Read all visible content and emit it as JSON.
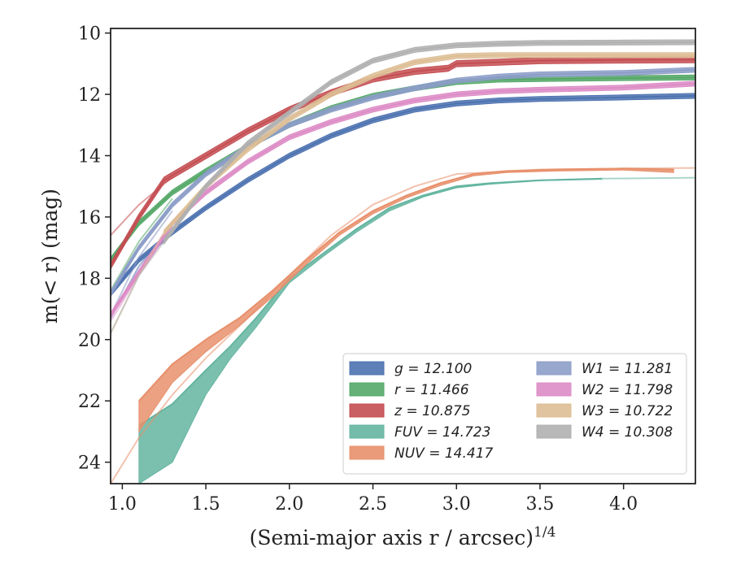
{
  "chart_data": {
    "type": "line",
    "title": "",
    "xlabel": "(Semi-major axis r / arcsec)",
    "xlabel_sup": "1/4",
    "ylabel": "m(< r) (mag)",
    "xlim": [
      0.93,
      4.43
    ],
    "ylim": [
      24.7,
      9.85
    ],
    "y_inverted": true,
    "xticks": [
      1.0,
      1.5,
      2.0,
      2.5,
      3.0,
      3.5,
      4.0
    ],
    "xtick_labels": [
      "1.0",
      "1.5",
      "2.0",
      "2.5",
      "3.0",
      "3.5",
      "4.0"
    ],
    "yticks": [
      10,
      12,
      14,
      16,
      18,
      20,
      22,
      24
    ],
    "ytick_labels": [
      "10",
      "12",
      "14",
      "16",
      "18",
      "20",
      "22",
      "24"
    ],
    "grid": false,
    "legend_position": "lower-right",
    "legend_columns": 2,
    "series": [
      {
        "name": "g",
        "label": "g = 12.100",
        "color": "#4c72b0",
        "band": 0.08,
        "x": [
          0.93,
          1.1,
          1.3,
          1.5,
          1.75,
          2.0,
          2.25,
          2.5,
          2.75,
          3.0,
          3.25,
          3.5,
          4.0,
          4.43
        ],
        "y": [
          18.5,
          17.4,
          16.5,
          15.7,
          14.8,
          14.0,
          13.35,
          12.85,
          12.5,
          12.3,
          12.2,
          12.15,
          12.1,
          12.05
        ],
        "ext_x": [
          0.93,
          1.1,
          1.3
        ],
        "ext_y": [
          19.3,
          17.6,
          16.3
        ]
      },
      {
        "name": "r",
        "label": "r = 11.466",
        "color": "#55a868",
        "band": 0.08,
        "x": [
          0.93,
          1.1,
          1.3,
          1.5,
          1.75,
          2.0,
          2.25,
          2.5,
          2.75,
          3.0,
          3.25,
          3.5,
          4.0,
          4.43
        ],
        "y": [
          17.4,
          16.2,
          15.2,
          14.5,
          13.7,
          13.0,
          12.45,
          12.05,
          11.8,
          11.6,
          11.52,
          11.5,
          11.47,
          11.45
        ],
        "ext_x": [
          0.93,
          1.1,
          1.3
        ],
        "ext_y": [
          18.4,
          16.8,
          15.4
        ]
      },
      {
        "name": "z",
        "label": "z = 10.875",
        "color": "#c44e52",
        "band": 0.1,
        "x": [
          0.93,
          1.1,
          1.25,
          1.5,
          1.75,
          2.0,
          2.25,
          2.5,
          2.75,
          2.95,
          3.0,
          3.25,
          3.5,
          4.0,
          4.43
        ],
        "y": [
          17.6,
          16.0,
          14.8,
          14.0,
          13.2,
          12.5,
          11.95,
          11.5,
          11.25,
          11.15,
          11.0,
          10.95,
          10.9,
          10.88,
          10.87
        ],
        "ext_x": [
          0.93,
          1.1,
          1.3
        ],
        "ext_y": [
          16.6,
          15.6,
          14.7
        ]
      },
      {
        "name": "FUV",
        "label": "FUV = 14.723",
        "color": "#64b5a0",
        "band_variable": true,
        "x": [
          1.1,
          1.3,
          1.5,
          1.65,
          1.8,
          2.0,
          2.2,
          2.4,
          2.6,
          2.8,
          3.0,
          3.2,
          3.5,
          3.87
        ],
        "y": [
          22.8,
          22.1,
          21.0,
          20.2,
          19.3,
          18.0,
          17.2,
          16.4,
          15.7,
          15.3,
          15.0,
          14.9,
          14.8,
          14.75
        ],
        "band_lower": [
          24.7,
          24.0,
          21.8,
          20.6,
          19.6,
          18.15,
          17.3,
          16.5,
          15.8,
          15.35,
          15.05,
          14.93,
          14.82,
          14.77
        ],
        "ext_x": [
          3.87,
          4.43
        ],
        "ext_y": [
          14.75,
          14.72
        ]
      },
      {
        "name": "NUV",
        "label": "NUV = 14.417",
        "color": "#e8906c",
        "band_variable": true,
        "x": [
          1.1,
          1.3,
          1.5,
          1.7,
          1.9,
          2.1,
          2.3,
          2.5,
          2.7,
          2.9,
          3.1,
          3.3,
          3.6,
          4.0,
          4.3
        ],
        "y": [
          22.0,
          20.8,
          20.0,
          19.3,
          18.4,
          17.4,
          16.5,
          15.8,
          15.3,
          14.9,
          14.6,
          14.5,
          14.45,
          14.42,
          14.45
        ],
        "band_lower": [
          23.0,
          21.4,
          20.4,
          19.55,
          18.6,
          17.55,
          16.6,
          15.9,
          15.38,
          14.98,
          14.66,
          14.55,
          14.5,
          14.47,
          14.55
        ],
        "ext_x": [
          0.93,
          1.1,
          1.3,
          1.5,
          1.75,
          2.0,
          2.25,
          2.5,
          2.75,
          3.0,
          3.5,
          4.0,
          4.43
        ],
        "ext_y": [
          24.7,
          23.2,
          21.8,
          20.6,
          19.3,
          17.9,
          16.6,
          15.6,
          15.0,
          14.6,
          14.45,
          14.42,
          14.4
        ]
      },
      {
        "name": "W1",
        "label": "W1 = 11.281",
        "color": "#8c9dc8",
        "band": 0.08,
        "x": [
          0.93,
          1.1,
          1.3,
          1.5,
          1.75,
          2.0,
          2.25,
          2.5,
          2.75,
          3.0,
          3.25,
          3.5,
          4.0,
          4.43
        ],
        "y": [
          18.5,
          17.0,
          15.6,
          14.6,
          13.7,
          13.0,
          12.5,
          12.1,
          11.8,
          11.55,
          11.42,
          11.35,
          11.3,
          11.2
        ],
        "ext_x": [
          0.93,
          1.1,
          1.3
        ],
        "ext_y": [
          19.2,
          17.3,
          15.8
        ]
      },
      {
        "name": "W2",
        "label": "W2 = 11.798",
        "color": "#dd8cc6",
        "band": 0.08,
        "x": [
          0.93,
          1.1,
          1.3,
          1.5,
          1.75,
          2.0,
          2.25,
          2.5,
          2.75,
          3.0,
          3.25,
          3.5,
          4.0,
          4.43
        ],
        "y": [
          19.2,
          17.8,
          16.2,
          15.2,
          14.2,
          13.4,
          12.9,
          12.5,
          12.2,
          12.0,
          11.9,
          11.85,
          11.78,
          11.65
        ],
        "ext_x": [
          0.93,
          1.1,
          1.3
        ],
        "ext_y": [
          19.4,
          17.9,
          16.3
        ]
      },
      {
        "name": "W3",
        "label": "W3 = 10.722",
        "color": "#ddbe95",
        "band": 0.08,
        "x": [
          1.25,
          1.5,
          1.75,
          2.0,
          2.25,
          2.5,
          2.75,
          3.0,
          3.25,
          3.5,
          4.0,
          4.43
        ],
        "y": [
          16.5,
          15.0,
          13.8,
          12.8,
          12.0,
          11.4,
          10.95,
          10.75,
          10.72,
          10.72,
          10.72,
          10.72
        ],
        "ext_x": [
          0.93,
          1.1,
          1.25
        ],
        "ext_y": [
          19.8,
          17.9,
          16.5
        ]
      },
      {
        "name": "W4",
        "label": "W4 = 10.308",
        "color": "#b0b0b0",
        "band": 0.08,
        "x": [
          1.25,
          1.5,
          1.75,
          2.0,
          2.25,
          2.5,
          2.75,
          3.0,
          3.25,
          3.5,
          4.0,
          4.43
        ],
        "y": [
          16.8,
          15.0,
          13.6,
          12.6,
          11.6,
          10.9,
          10.55,
          10.4,
          10.35,
          10.32,
          10.31,
          10.3
        ],
        "ext_x": [
          0.93,
          1.1,
          1.25
        ],
        "ext_y": [
          19.8,
          17.9,
          16.8
        ]
      }
    ]
  }
}
